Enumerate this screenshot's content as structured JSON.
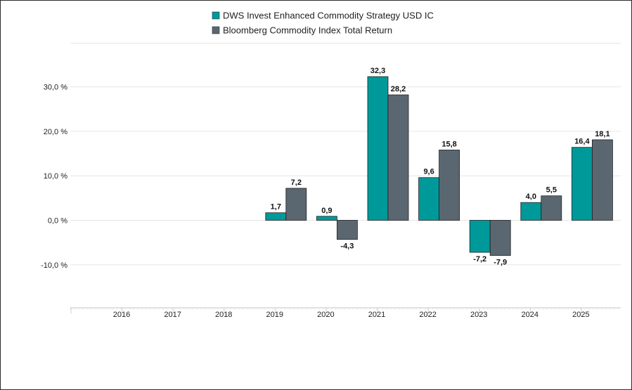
{
  "chart_data": {
    "type": "bar",
    "categories": [
      "2016",
      "2017",
      "2018",
      "2019",
      "2020",
      "2021",
      "2022",
      "2023",
      "2024",
      "2025"
    ],
    "series": [
      {
        "name": "DWS Invest Enhanced Commodity Strategy USD IC",
        "color": "#00999a",
        "values": [
          null,
          null,
          null,
          1.7,
          0.9,
          32.3,
          9.6,
          -7.2,
          4.0,
          16.4
        ],
        "labels": [
          "",
          "",
          "",
          "1,7",
          "0,9",
          "32,3",
          "9,6",
          "-7,2",
          "4,0",
          "16,4"
        ]
      },
      {
        "name": "Bloomberg Commodity Index Total Return",
        "color": "#5b6770",
        "values": [
          null,
          null,
          null,
          7.2,
          -4.3,
          28.2,
          15.8,
          -7.9,
          5.5,
          18.1
        ],
        "labels": [
          "",
          "",
          "",
          "7,2",
          "-4,3",
          "28,2",
          "15,8",
          "-7,9",
          "5,5",
          "18,1"
        ]
      }
    ],
    "y_ticks": [
      30,
      20,
      10,
      0,
      -10
    ],
    "y_tick_labels": [
      "30,0 %",
      "20,0 %",
      "10,0 %",
      "0,0 %",
      "-10,0 %"
    ],
    "ylim": [
      -20,
      40
    ],
    "grid": true,
    "legend_position": "top-center"
  }
}
